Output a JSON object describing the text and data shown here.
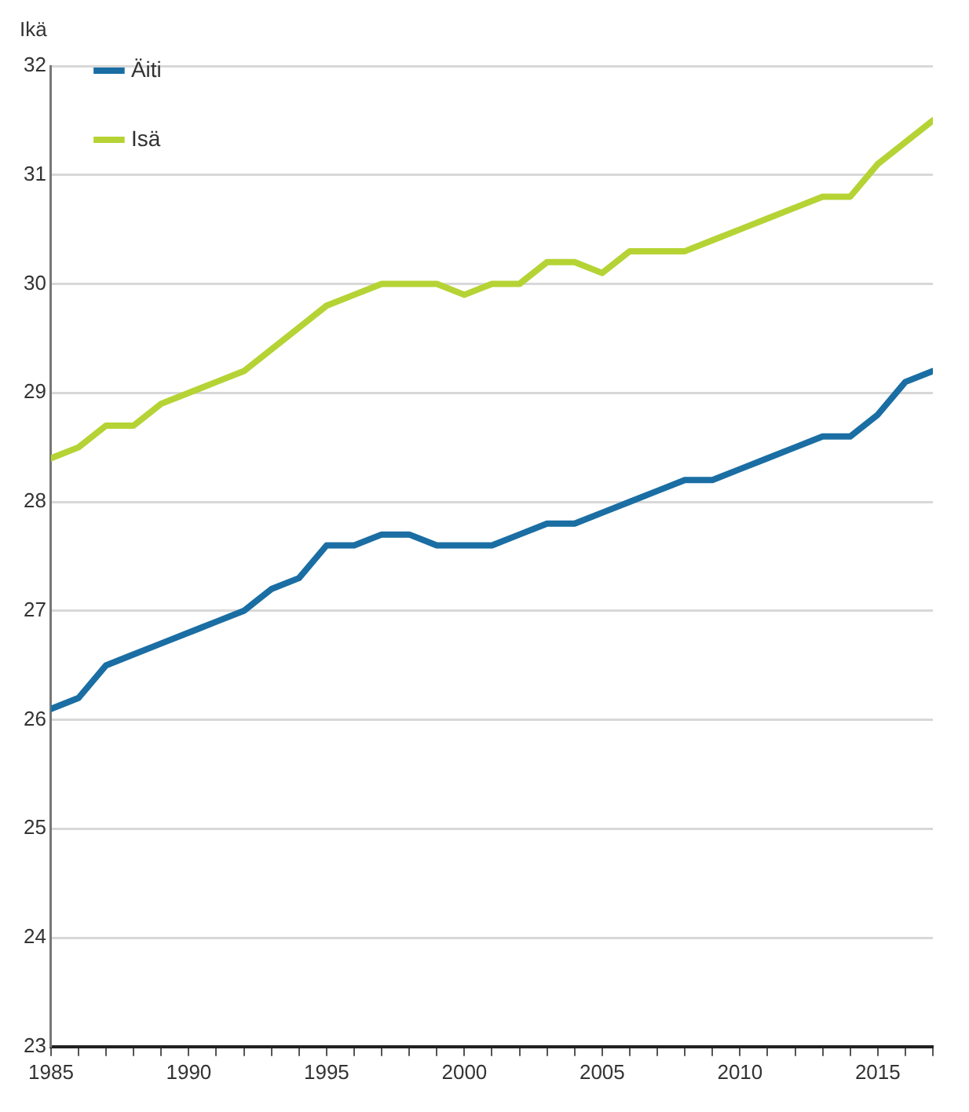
{
  "chart_data": {
    "type": "line",
    "ylabel": "Ikä",
    "x": [
      1985,
      1986,
      1987,
      1988,
      1989,
      1990,
      1991,
      1992,
      1993,
      1994,
      1995,
      1996,
      1997,
      1998,
      1999,
      2000,
      2001,
      2002,
      2003,
      2004,
      2005,
      2006,
      2007,
      2008,
      2009,
      2010,
      2011,
      2012,
      2013,
      2014,
      2015,
      2016,
      2017
    ],
    "series": [
      {
        "name": "Äiti",
        "color": "#1a6ea3",
        "values": [
          26.1,
          26.2,
          26.5,
          26.6,
          26.7,
          26.8,
          26.9,
          27.0,
          27.2,
          27.3,
          27.6,
          27.6,
          27.7,
          27.7,
          27.6,
          27.6,
          27.6,
          27.7,
          27.8,
          27.8,
          27.9,
          28.0,
          28.1,
          28.2,
          28.2,
          28.3,
          28.4,
          28.5,
          28.6,
          28.6,
          28.8,
          29.1,
          29.2
        ]
      },
      {
        "name": "Isä",
        "color": "#b5d334",
        "values": [
          28.4,
          28.5,
          28.7,
          28.7,
          28.9,
          29.0,
          29.1,
          29.2,
          29.4,
          29.6,
          29.8,
          29.9,
          30.0,
          30.0,
          30.0,
          29.9,
          30.0,
          30.0,
          30.2,
          30.2,
          30.1,
          30.3,
          30.3,
          30.3,
          30.4,
          30.5,
          30.6,
          30.7,
          30.8,
          30.8,
          31.1,
          31.3,
          31.5
        ]
      }
    ],
    "xlim": [
      1985,
      2017
    ],
    "xticks": [
      1985,
      {
        "value": 1986,
        "label": null
      },
      {
        "value": 1987,
        "label": null
      },
      {
        "value": 1988,
        "label": null
      },
      {
        "value": 1989,
        "label": null
      },
      1990,
      {
        "value": 1991,
        "label": null
      },
      {
        "value": 1992,
        "label": null
      },
      {
        "value": 1993,
        "label": null
      },
      {
        "value": 1994,
        "label": null
      },
      1995,
      {
        "value": 1996,
        "label": null
      },
      {
        "value": 1997,
        "label": null
      },
      {
        "value": 1998,
        "label": null
      },
      {
        "value": 1999,
        "label": null
      },
      2000,
      {
        "value": 2001,
        "label": null
      },
      {
        "value": 2002,
        "label": null
      },
      {
        "value": 2003,
        "label": null
      },
      {
        "value": 2004,
        "label": null
      },
      2005,
      {
        "value": 2006,
        "label": null
      },
      {
        "value": 2007,
        "label": null
      },
      {
        "value": 2008,
        "label": null
      },
      {
        "value": 2009,
        "label": null
      },
      2010,
      {
        "value": 2011,
        "label": null
      },
      {
        "value": 2012,
        "label": null
      },
      {
        "value": 2013,
        "label": null
      },
      {
        "value": 2014,
        "label": null
      },
      2015,
      {
        "value": 2016,
        "label": null
      },
      {
        "value": 2017,
        "label": null
      }
    ],
    "ylim": [
      23,
      32
    ],
    "yticks": [
      23,
      24,
      25,
      26,
      27,
      28,
      29,
      30,
      31,
      32
    ],
    "grid": "y",
    "legend": "top left",
    "marker": "none",
    "line_style": "solid"
  }
}
